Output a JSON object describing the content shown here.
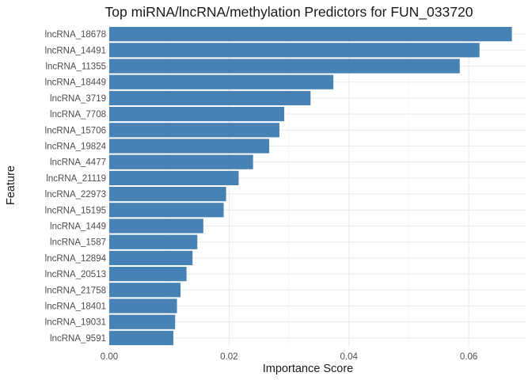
{
  "chart_data": {
    "type": "bar",
    "orientation": "horizontal",
    "title": "Top miRNA/lncRNA/methylation Predictors for FUN_033720",
    "xlabel": "Importance Score",
    "ylabel": "Feature",
    "xlim": [
      0,
      0.0695
    ],
    "xticks": [
      0.0,
      0.02,
      0.04,
      0.06
    ],
    "xtick_labels": [
      "0.00",
      "0.02",
      "0.04",
      "0.06"
    ],
    "grid": true,
    "bar_color": "#4682B4",
    "categories": [
      "lncRNA_18678",
      "lncRNA_14491",
      "lncRNA_11355",
      "lncRNA_18449",
      "lncRNA_3719",
      "lncRNA_7708",
      "lncRNA_15706",
      "lncRNA_19824",
      "lncRNA_4477",
      "lncRNA_21119",
      "lncRNA_22973",
      "lncRNA_15195",
      "lncRNA_1449",
      "lncRNA_1587",
      "lncRNA_12894",
      "lncRNA_20513",
      "lncRNA_21758",
      "lncRNA_18401",
      "lncRNA_19031",
      "lncRNA_9591"
    ],
    "values": [
      0.0672,
      0.0618,
      0.0585,
      0.0374,
      0.0336,
      0.0292,
      0.0284,
      0.0267,
      0.024,
      0.0216,
      0.0195,
      0.0191,
      0.0157,
      0.0147,
      0.0139,
      0.0129,
      0.0119,
      0.0113,
      0.011,
      0.0107
    ]
  }
}
